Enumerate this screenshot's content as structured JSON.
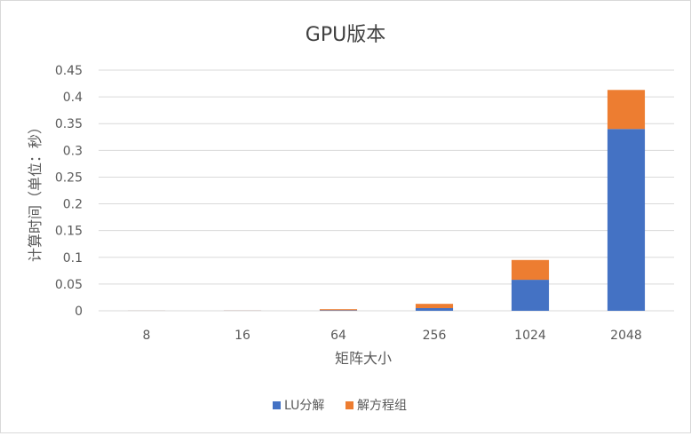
{
  "chart_data": {
    "type": "bar",
    "stacked": true,
    "title": "GPU版本",
    "xlabel": "矩阵大小",
    "ylabel": "计算时间（单位：秒）",
    "categories": [
      "8",
      "16",
      "64",
      "256",
      "1024",
      "2048"
    ],
    "series": [
      {
        "name": "LU分解",
        "color": "#4472C4",
        "values": [
          0.0001,
          0.0002,
          0.001,
          0.005,
          0.058,
          0.34
        ]
      },
      {
        "name": "解方程组",
        "color": "#ED7D31",
        "values": [
          0.0001,
          0.0002,
          0.002,
          0.008,
          0.037,
          0.073
        ]
      }
    ],
    "ylim": [
      0,
      0.45
    ],
    "yticks": [
      "0",
      "0.05",
      "0.1",
      "0.15",
      "0.2",
      "0.25",
      "0.3",
      "0.35",
      "0.4",
      "0.45"
    ],
    "grid": true,
    "legend": "bottom"
  }
}
